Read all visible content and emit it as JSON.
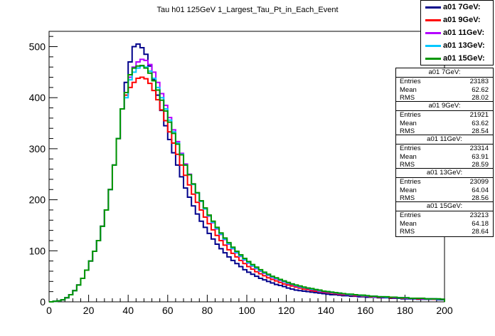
{
  "chart_data": {
    "type": "line",
    "title": "Tau h01 125GeV 1_Largest_Tau_Pt_in_Each_Event",
    "xlabel": "",
    "ylabel": "",
    "xlim": [
      0,
      200
    ],
    "ylim": [
      0,
      530
    ],
    "x_ticks": [
      "0",
      "20",
      "40",
      "60",
      "80",
      "100",
      "120",
      "140",
      "160",
      "180",
      "200"
    ],
    "y_ticks": [
      "0",
      "100",
      "200",
      "300",
      "400",
      "500"
    ],
    "bin_width": 2,
    "x": [
      1,
      3,
      5,
      7,
      9,
      11,
      13,
      15,
      17,
      19,
      21,
      23,
      25,
      27,
      29,
      31,
      33,
      35,
      37,
      39,
      41,
      43,
      45,
      47,
      49,
      51,
      53,
      55,
      57,
      59,
      61,
      63,
      65,
      67,
      69,
      71,
      73,
      75,
      77,
      79,
      81,
      83,
      85,
      87,
      89,
      91,
      93,
      95,
      97,
      99,
      101,
      103,
      105,
      107,
      109,
      111,
      113,
      115,
      117,
      119,
      121,
      123,
      125,
      127,
      129,
      131,
      133,
      135,
      137,
      139,
      141,
      143,
      145,
      147,
      149,
      151,
      153,
      155,
      157,
      159,
      161,
      163,
      165,
      167,
      169,
      171,
      173,
      175,
      177,
      179,
      181,
      183,
      185,
      187,
      189,
      191,
      193,
      195,
      197,
      199
    ],
    "series": [
      {
        "name": "a01 7GeV:",
        "color": "#00008b",
        "values": [
          0,
          1,
          2,
          4,
          8,
          14,
          22,
          33,
          46,
          62,
          80,
          99,
          120,
          148,
          180,
          220,
          268,
          320,
          378,
          430,
          470,
          500,
          505,
          498,
          485,
          462,
          435,
          405,
          375,
          345,
          318,
          292,
          268,
          245,
          223,
          205,
          188,
          172,
          158,
          146,
          134,
          123,
          113,
          104,
          96,
          88,
          81,
          75,
          69,
          63,
          58,
          54,
          50,
          46,
          43,
          40,
          37,
          34,
          32,
          30,
          27,
          25,
          23,
          22,
          21,
          20,
          19,
          18,
          17,
          16,
          15,
          14,
          14,
          13,
          12,
          12,
          11,
          11,
          10,
          10,
          9,
          9,
          9,
          8,
          8,
          8,
          7,
          7,
          7,
          6,
          6,
          6,
          6,
          5,
          5,
          5,
          5,
          5,
          4,
          4
        ]
      },
      {
        "name": "a01 9GeV:",
        "color": "#ff0000",
        "values": [
          0,
          1,
          2,
          4,
          8,
          14,
          22,
          33,
          46,
          62,
          80,
          99,
          120,
          148,
          180,
          220,
          268,
          320,
          378,
          405,
          420,
          430,
          438,
          440,
          437,
          428,
          414,
          396,
          376,
          355,
          333,
          311,
          289,
          268,
          248,
          229,
          211,
          195,
          180,
          166,
          153,
          141,
          130,
          120,
          111,
          102,
          95,
          88,
          81,
          75,
          69,
          64,
          59,
          55,
          51,
          47,
          44,
          41,
          38,
          35,
          33,
          31,
          29,
          27,
          25,
          24,
          22,
          21,
          20,
          19,
          18,
          17,
          16,
          15,
          14,
          14,
          13,
          12,
          12,
          11,
          11,
          10,
          10,
          9,
          9,
          9,
          8,
          8,
          8,
          7,
          7,
          7,
          7,
          6,
          6,
          6,
          6,
          5,
          5,
          5
        ]
      },
      {
        "name": "a01 11GeV:",
        "color": "#b400ff",
        "values": [
          0,
          1,
          2,
          4,
          8,
          14,
          22,
          33,
          46,
          62,
          80,
          99,
          120,
          148,
          180,
          220,
          268,
          320,
          378,
          410,
          440,
          460,
          470,
          475,
          473,
          465,
          450,
          430,
          408,
          385,
          361,
          337,
          314,
          291,
          270,
          250,
          231,
          213,
          197,
          182,
          168,
          155,
          143,
          132,
          122,
          113,
          104,
          96,
          89,
          82,
          76,
          70,
          65,
          60,
          56,
          52,
          48,
          45,
          42,
          39,
          36,
          34,
          31,
          29,
          28,
          26,
          24,
          23,
          21,
          20,
          19,
          18,
          17,
          16,
          15,
          14,
          14,
          13,
          12,
          12,
          11,
          11,
          10,
          10,
          9,
          9,
          9,
          8,
          8,
          8,
          7,
          7,
          7,
          7,
          6,
          6,
          6,
          6,
          5,
          5
        ]
      },
      {
        "name": "a01 13GeV:",
        "color": "#00c8ff",
        "values": [
          0,
          1,
          2,
          4,
          8,
          14,
          22,
          33,
          46,
          62,
          80,
          99,
          120,
          148,
          180,
          220,
          268,
          320,
          378,
          400,
          435,
          450,
          458,
          462,
          460,
          452,
          438,
          420,
          400,
          378,
          356,
          333,
          311,
          289,
          268,
          249,
          230,
          213,
          197,
          182,
          169,
          156,
          144,
          133,
          123,
          114,
          105,
          97,
          90,
          83,
          77,
          71,
          66,
          61,
          57,
          53,
          49,
          46,
          43,
          40,
          37,
          35,
          32,
          30,
          28,
          27,
          25,
          24,
          22,
          21,
          20,
          19,
          18,
          17,
          16,
          15,
          14,
          14,
          13,
          12,
          12,
          11,
          11,
          10,
          10,
          9,
          9,
          9,
          8,
          8,
          8,
          7,
          7,
          7,
          7,
          6,
          6,
          6,
          5,
          5
        ]
      },
      {
        "name": "a01 15GeV:",
        "color": "#009600",
        "values": [
          0,
          1,
          2,
          4,
          8,
          14,
          22,
          33,
          46,
          62,
          80,
          99,
          120,
          148,
          180,
          220,
          268,
          320,
          378,
          410,
          445,
          458,
          462,
          463,
          458,
          448,
          433,
          415,
          395,
          374,
          352,
          330,
          309,
          288,
          268,
          249,
          231,
          214,
          198,
          184,
          170,
          158,
          146,
          135,
          125,
          116,
          107,
          99,
          92,
          85,
          79,
          73,
          68,
          63,
          58,
          54,
          50,
          47,
          44,
          41,
          38,
          35,
          33,
          31,
          29,
          27,
          26,
          24,
          23,
          21,
          20,
          19,
          18,
          17,
          16,
          15,
          15,
          14,
          13,
          13,
          12,
          11,
          11,
          10,
          10,
          10,
          9,
          9,
          8,
          8,
          8,
          7,
          7,
          7,
          7,
          6,
          6,
          6,
          6,
          5
        ]
      }
    ],
    "legend": {
      "position": "top-right",
      "entries": [
        "a01 7GeV:",
        "a01 9GeV:",
        "a01 11GeV:",
        "a01 13GeV:",
        "a01 15GeV:"
      ]
    },
    "stats": [
      {
        "title": "a01 7GeV:",
        "entries_label": "Entries",
        "entries": "23183",
        "mean_label": "Mean",
        "mean": "62.62",
        "rms_label": "RMS",
        "rms": "28.02"
      },
      {
        "title": "a01 9GeV:",
        "entries_label": "Entries",
        "entries": "21921",
        "mean_label": "Mean",
        "mean": "63.62",
        "rms_label": "RMS",
        "rms": "28.54"
      },
      {
        "title": "a01 11GeV:",
        "entries_label": "Entries",
        "entries": "23314",
        "mean_label": "Mean",
        "mean": "63.91",
        "rms_label": "RMS",
        "rms": "28.59"
      },
      {
        "title": "a01 13GeV:",
        "entries_label": "Entries",
        "entries": "23099",
        "mean_label": "Mean",
        "mean": "64.04",
        "rms_label": "RMS",
        "rms": "28.56"
      },
      {
        "title": "a01 15GeV:",
        "entries_label": "Entries",
        "entries": "23213",
        "mean_label": "Mean",
        "mean": "64.18",
        "rms_label": "RMS",
        "rms": "28.64"
      }
    ]
  }
}
